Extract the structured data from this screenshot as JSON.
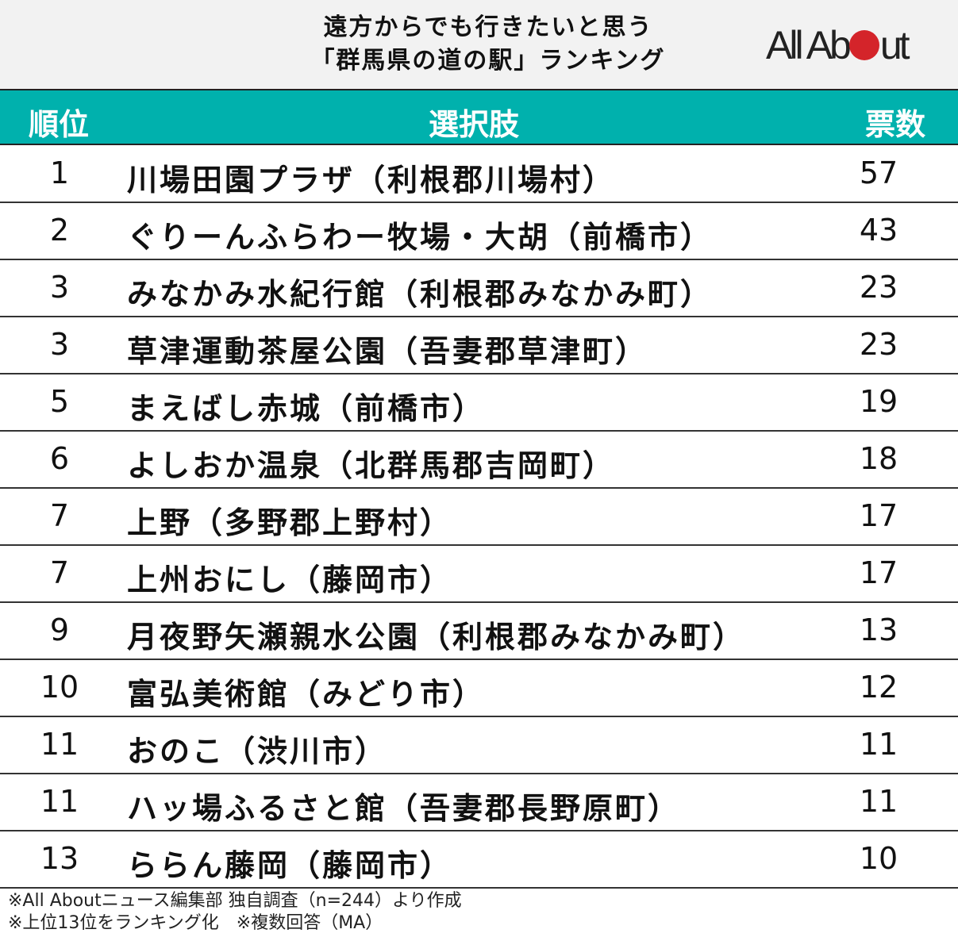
{
  "title_line1": "遠方からでも行きたいと思う",
  "title_line2": "「群馬県の道の駅」ランキング",
  "logo": "All About",
  "colors": {
    "header": "#00b1ad",
    "logo_dot": "#d4242a"
  },
  "chart_data": {
    "type": "table",
    "columns": [
      "順位",
      "選択肢",
      "票数"
    ],
    "rows": [
      {
        "rank": "1",
        "name": "川場田園プラザ（利根郡川場村）",
        "votes": "57"
      },
      {
        "rank": "2",
        "name": "ぐりーんふらわー牧場・大胡（前橋市）",
        "votes": "43"
      },
      {
        "rank": "3",
        "name": "みなかみ水紀行館（利根郡みなかみ町）",
        "votes": "23"
      },
      {
        "rank": "3",
        "name": "草津運動茶屋公園（吾妻郡草津町）",
        "votes": "23"
      },
      {
        "rank": "5",
        "name": "まえばし赤城（前橋市）",
        "votes": "19"
      },
      {
        "rank": "6",
        "name": "よしおか温泉（北群馬郡吉岡町）",
        "votes": "18"
      },
      {
        "rank": "7",
        "name": "上野（多野郡上野村）",
        "votes": "17"
      },
      {
        "rank": "7",
        "name": "上州おにし（藤岡市）",
        "votes": "17"
      },
      {
        "rank": "9",
        "name": "月夜野矢瀬親水公園（利根郡みなかみ町）",
        "votes": "13"
      },
      {
        "rank": "10",
        "name": "富弘美術館（みどり市）",
        "votes": "12"
      },
      {
        "rank": "11",
        "name": "おのこ（渋川市）",
        "votes": "11"
      },
      {
        "rank": "11",
        "name": "ハッ場ふるさと館（吾妻郡長野原町）",
        "votes": "11"
      },
      {
        "rank": "13",
        "name": "ららん藤岡（藤岡市）",
        "votes": "10"
      }
    ]
  },
  "footnotes": [
    "※All Aboutニュース編集部 独自調査（n=244）より作成",
    "※上位13位をランキング化　※複数回答（MA）"
  ]
}
